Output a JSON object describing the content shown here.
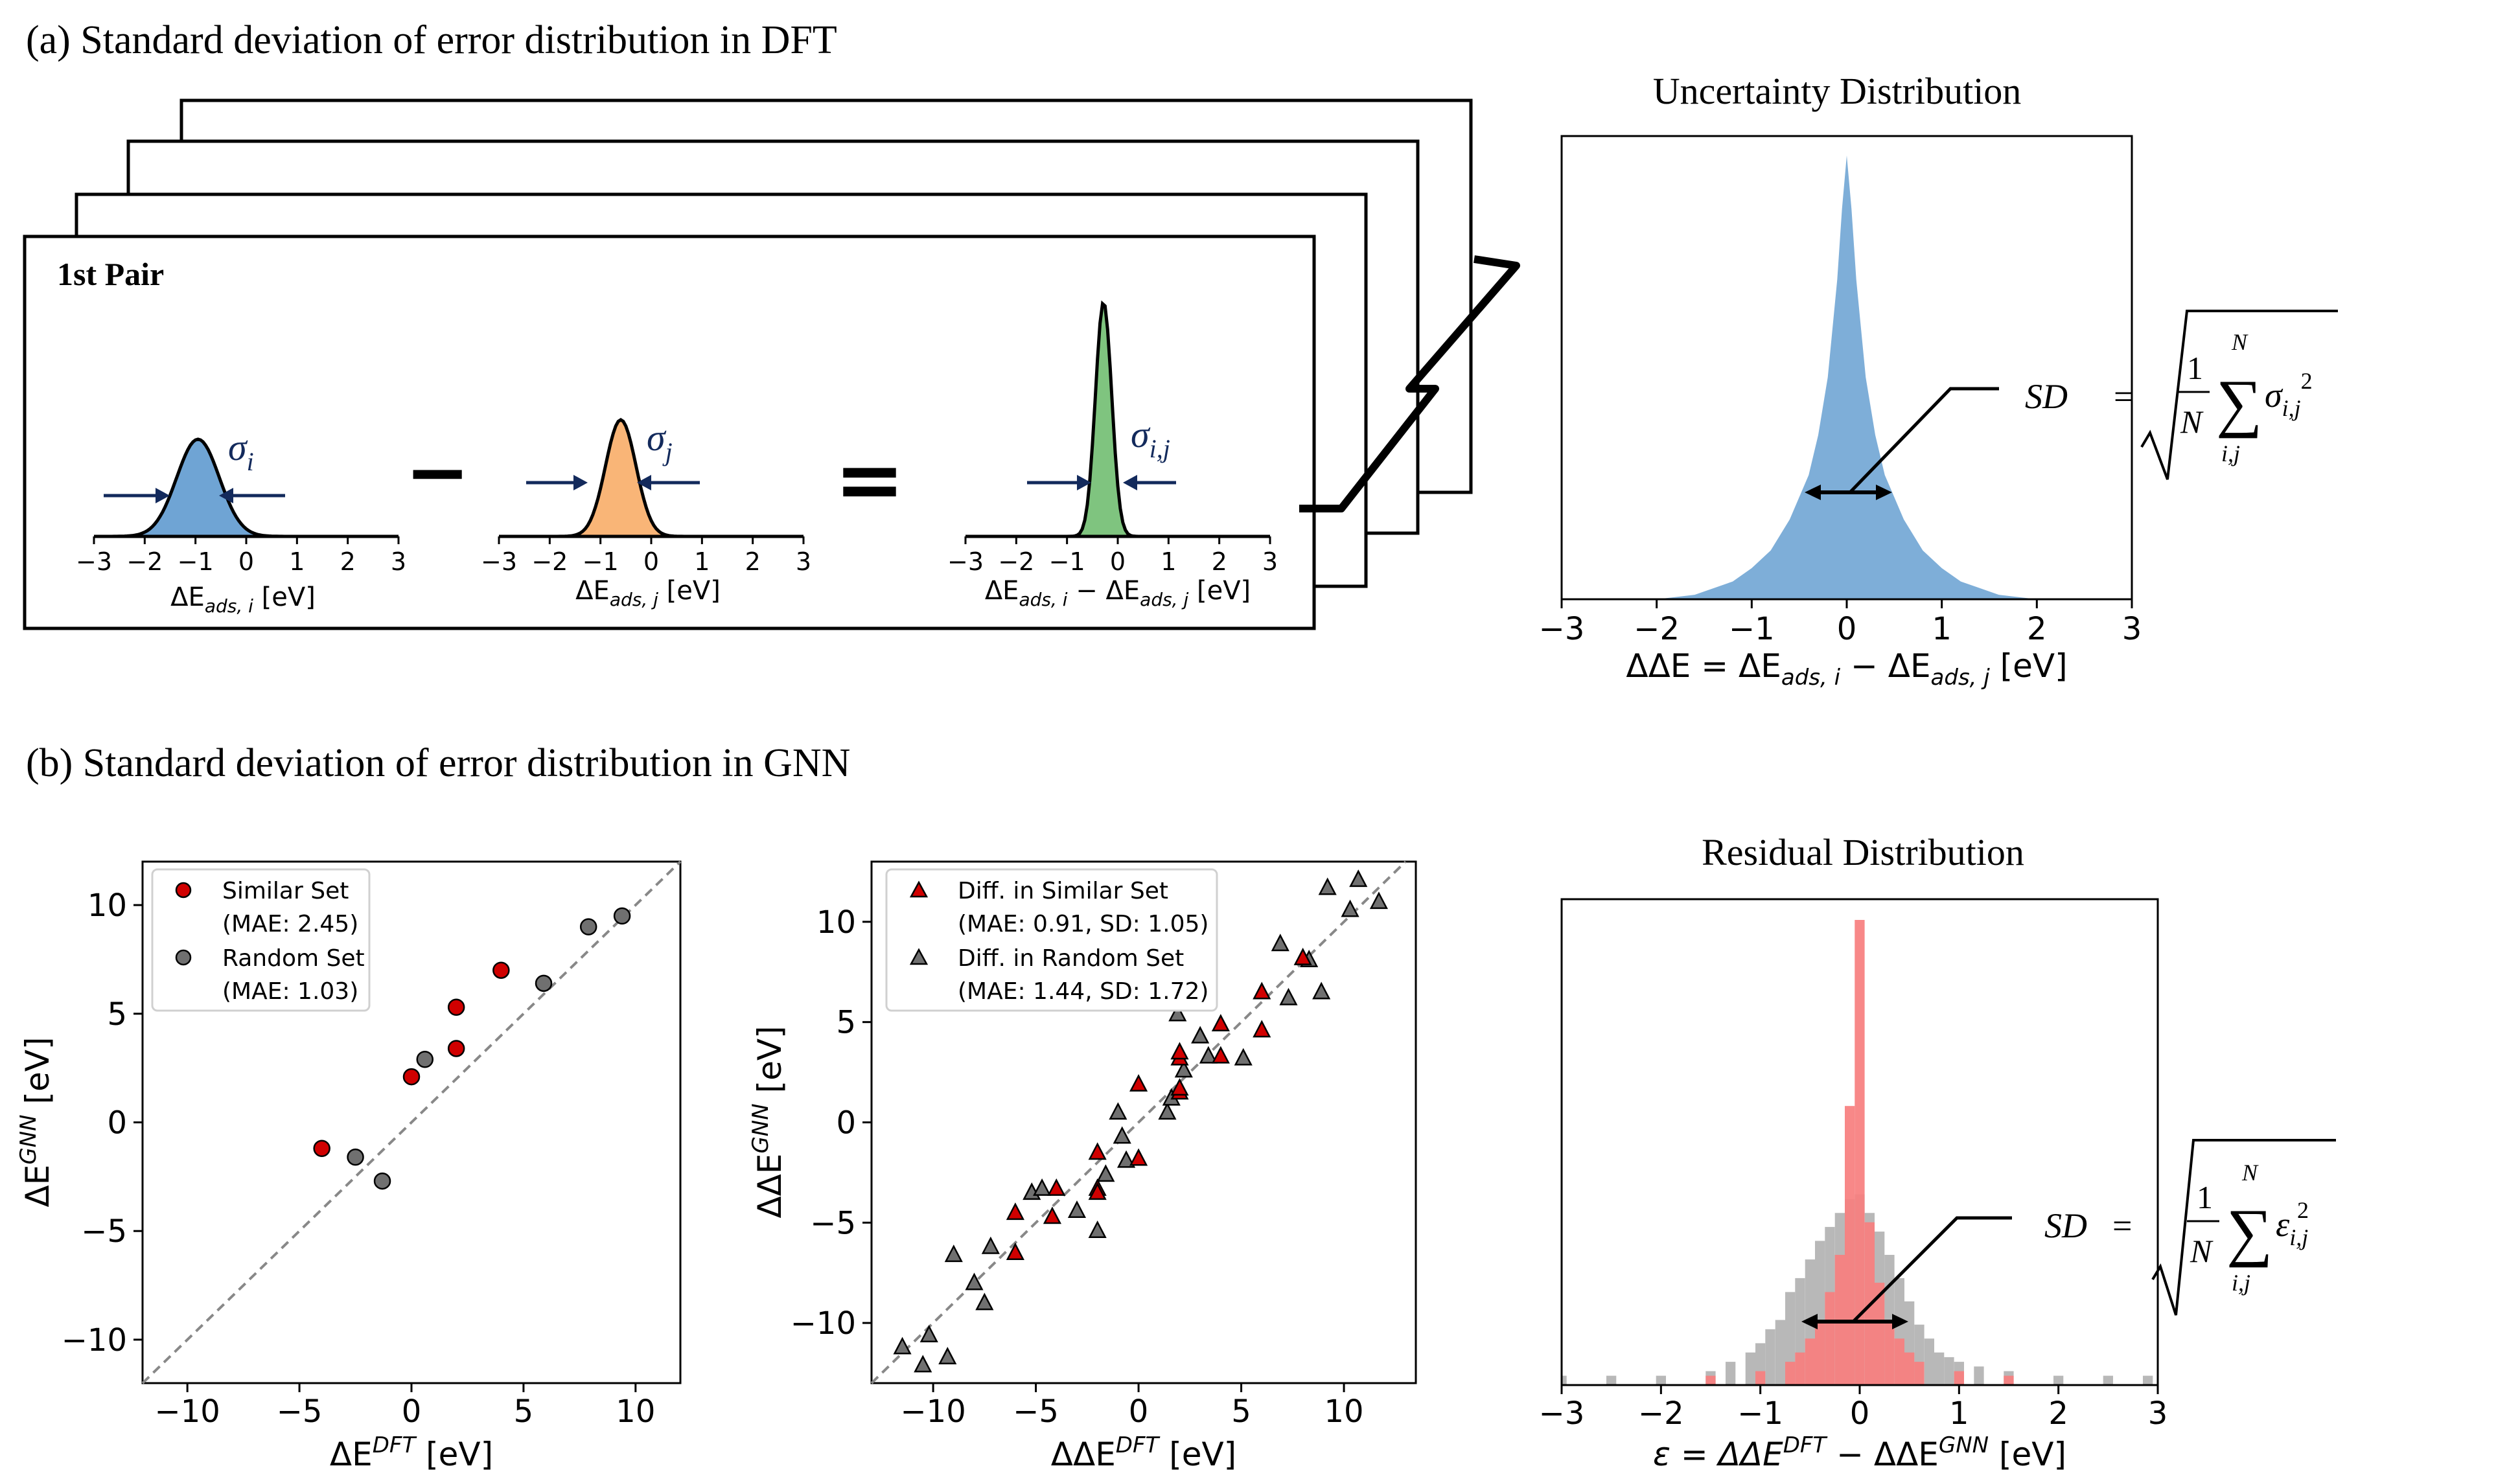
{
  "panel_a": {
    "title": "(a) Standard deviation of error distribution in DFT",
    "pair_label": "1st Pair",
    "operators": {
      "minus": "−",
      "equals": "="
    },
    "dist_i": {
      "sigma_base": "σ",
      "sigma_sub": "i",
      "xlabel_main": "ΔE",
      "xlabel_sub": "ads, i",
      "xlabel_unit": " [eV]",
      "color": "#6fa4d4"
    },
    "dist_j": {
      "sigma_base": "σ",
      "sigma_sub": "j",
      "xlabel_main": "ΔE",
      "xlabel_sub": "ads, j",
      "xlabel_unit": " [eV]",
      "color": "#f9b577"
    },
    "dist_ij": {
      "sigma_base": "σ",
      "sigma_sub": "i,j",
      "xlabel_main1": "ΔE",
      "xlabel_sub1": "ads, i",
      "xlabel_mid": " − ΔE",
      "xlabel_sub2": "ads, j",
      "xlabel_unit": " [eV]",
      "color": "#7fc47f"
    },
    "mini_ticks": [
      "−3",
      "−2",
      "−1",
      "0",
      "1",
      "2",
      "3"
    ],
    "uncertainty_hist": {
      "title": "Uncertainty Distribution",
      "xlabel_a": "ΔΔE = ΔE",
      "xlabel_sub1": "ads, i",
      "xlabel_b": " − ΔE",
      "xlabel_sub2": "ads, j",
      "xlabel_unit": " [eV]",
      "xticks": [
        "−3",
        "−2",
        "−1",
        "0",
        "1",
        "2",
        "3"
      ],
      "color": "#7eaed8"
    },
    "formula": {
      "sd": "SD",
      "eq": "=",
      "one": "1",
      "n_den": "N",
      "n_top": "N",
      "sum": "∑",
      "sum_sub": "i,j",
      "sigma": "σ",
      "sigma_sub": "i,j",
      "sq": "2"
    }
  },
  "panel_b": {
    "title": "(b) Standard deviation of error distribution in GNN",
    "residual_hist": {
      "title": "Residual Distribution",
      "xlabel_a": "ε = ΔΔE",
      "xlabel_sup1": "DFT",
      "xlabel_b": " − ΔΔE",
      "xlabel_sup2": "GNN",
      "xlabel_unit": " [eV]",
      "xticks": [
        "−3",
        "−2",
        "−1",
        "0",
        "1",
        "2",
        "3"
      ],
      "colors": {
        "similar": "#f77e7e",
        "random": "#b8b8b8"
      }
    },
    "formula": {
      "sd": "SD",
      "eq": "=",
      "one": "1",
      "n_den": "N",
      "n_top": "N",
      "sum": "∑",
      "sum_sub": "i,j",
      "eps": "ε",
      "eps_sub": "i,j",
      "sq": "2"
    }
  },
  "chart_data": [
    {
      "id": "scatter1",
      "type": "scatter",
      "xlabel_main": "ΔE",
      "xlabel_sup": "DFT",
      "xlabel_unit": " [eV]",
      "ylabel_main": "ΔE",
      "ylabel_sup": "GNN",
      "ylabel_unit": " [eV]",
      "xlim": [
        -12,
        12
      ],
      "ylim": [
        -12,
        12
      ],
      "xticks": [
        -10,
        -5,
        0,
        5,
        10
      ],
      "yticks": [
        -10,
        -5,
        0,
        5,
        10
      ],
      "xtick_labels": [
        "−10",
        "−5",
        "0",
        "5",
        "10"
      ],
      "ytick_labels": [
        "−10",
        "−5",
        "0",
        "5",
        "10"
      ],
      "diagonal": true,
      "series": [
        {
          "name": "Similar Set",
          "stat": "(MAE: 2.45)",
          "marker": "circle",
          "color": "#d00000",
          "x": [
            -4.0,
            0.0,
            2.0,
            2.0,
            4.0
          ],
          "y": [
            -1.2,
            2.1,
            3.4,
            5.3,
            7.0
          ]
        },
        {
          "name": "Random Set",
          "stat": "(MAE: 1.03)",
          "marker": "circle",
          "color": "#707070",
          "x": [
            -2.5,
            -1.3,
            0.6,
            5.9,
            7.9,
            9.4
          ],
          "y": [
            -1.6,
            -2.7,
            2.9,
            6.4,
            9.0,
            9.5
          ]
        }
      ]
    },
    {
      "id": "scatter2",
      "type": "scatter",
      "xlabel_main": "ΔΔE",
      "xlabel_sup": "DFT",
      "xlabel_unit": " [eV]",
      "ylabel_main": "ΔΔE",
      "ylabel_sup": "GNN",
      "ylabel_unit": " [eV]",
      "xlim": [
        -13,
        13.5
      ],
      "ylim": [
        -13,
        13
      ],
      "xticks": [
        -10,
        -5,
        0,
        5,
        10
      ],
      "yticks": [
        -10,
        -5,
        0,
        5,
        10
      ],
      "xtick_labels": [
        "−10",
        "−5",
        "0",
        "5",
        "10"
      ],
      "ytick_labels": [
        "−10",
        "−5",
        "0",
        "5",
        "10"
      ],
      "diagonal": true,
      "series": [
        {
          "name": "Diff. in Similar Set",
          "stat": "(MAE: 0.91, SD: 1.05)",
          "marker": "triangle",
          "color": "#d00000",
          "x": [
            -6.0,
            -6.0,
            -4.0,
            -4.2,
            -2.0,
            -2.0,
            -2.0,
            0.0,
            0.0,
            2.0,
            2.0,
            2.0,
            2.0,
            4.0,
            4.0,
            6.0,
            6.0,
            8.0
          ],
          "y": [
            -4.5,
            -6.5,
            -3.3,
            -4.7,
            -3.3,
            -3.5,
            -1.5,
            -1.8,
            1.9,
            3.2,
            3.5,
            1.5,
            1.7,
            3.3,
            4.9,
            4.6,
            6.5,
            8.2
          ]
        },
        {
          "name": "Diff. in Random Set",
          "stat": "(MAE: 1.44, SD: 1.72)",
          "marker": "triangle",
          "color": "#707070",
          "x": [
            -11.5,
            -10.5,
            -10.2,
            -9.3,
            -9.0,
            -8.0,
            -7.5,
            -7.2,
            -5.2,
            -4.7,
            -3.0,
            -2.0,
            -1.6,
            -1.0,
            -0.8,
            -0.6,
            1.4,
            1.6,
            1.9,
            2.2,
            3.0,
            3.4,
            5.1,
            6.9,
            7.3,
            8.3,
            8.9,
            9.2,
            10.3,
            10.7,
            11.7
          ],
          "y": [
            -11.2,
            -12.1,
            -10.6,
            -11.7,
            -6.6,
            -8.0,
            -9.0,
            -6.2,
            -3.5,
            -3.3,
            -4.4,
            -5.4,
            -2.6,
            0.5,
            -0.7,
            -1.9,
            0.5,
            1.2,
            5.4,
            2.6,
            4.3,
            3.3,
            3.2,
            8.9,
            6.2,
            8.1,
            6.5,
            11.7,
            10.6,
            12.1,
            11.0
          ]
        }
      ]
    },
    {
      "id": "uncertainty",
      "type": "area",
      "title": "Uncertainty Distribution",
      "xlim": [
        -3,
        3
      ],
      "x": [
        -3.0,
        -2.0,
        -1.6,
        -1.2,
        -1.0,
        -0.8,
        -0.6,
        -0.4,
        -0.3,
        -0.2,
        -0.1,
        -0.05,
        0.0,
        0.05,
        0.1,
        0.2,
        0.3,
        0.4,
        0.6,
        0.8,
        1.0,
        1.2,
        1.6,
        2.0,
        3.0
      ],
      "density": [
        0.0,
        0.0,
        0.01,
        0.04,
        0.07,
        0.11,
        0.18,
        0.28,
        0.37,
        0.5,
        0.72,
        0.88,
        1.0,
        0.88,
        0.72,
        0.5,
        0.37,
        0.28,
        0.18,
        0.11,
        0.07,
        0.04,
        0.01,
        0.0,
        0.0
      ]
    },
    {
      "id": "residual",
      "type": "bar",
      "title": "Residual Distribution",
      "xlim": [
        -3,
        3
      ],
      "bin_width": 0.1,
      "series": [
        {
          "name": "Random Set",
          "color": "#b8b8b8",
          "bins": [
            [
              -3.0,
              0.02
            ],
            [
              -2.5,
              0.02
            ],
            [
              -2.0,
              0.02
            ],
            [
              -1.5,
              0.03
            ],
            [
              -1.3,
              0.05
            ],
            [
              -1.1,
              0.07
            ],
            [
              -1.0,
              0.09
            ],
            [
              -0.9,
              0.12
            ],
            [
              -0.8,
              0.14
            ],
            [
              -0.7,
              0.2
            ],
            [
              -0.6,
              0.23
            ],
            [
              -0.5,
              0.27
            ],
            [
              -0.4,
              0.31
            ],
            [
              -0.3,
              0.34
            ],
            [
              -0.2,
              0.37
            ],
            [
              -0.1,
              0.4
            ],
            [
              0.0,
              0.41
            ],
            [
              0.1,
              0.37
            ],
            [
              0.2,
              0.33
            ],
            [
              0.3,
              0.28
            ],
            [
              0.4,
              0.23
            ],
            [
              0.5,
              0.18
            ],
            [
              0.6,
              0.13
            ],
            [
              0.7,
              0.1
            ],
            [
              0.8,
              0.07
            ],
            [
              0.9,
              0.06
            ],
            [
              1.0,
              0.05
            ],
            [
              1.2,
              0.04
            ],
            [
              1.5,
              0.03
            ],
            [
              2.0,
              0.02
            ],
            [
              2.5,
              0.02
            ],
            [
              2.9,
              0.02
            ]
          ]
        },
        {
          "name": "Similar Set",
          "color": "#f77e7e",
          "bins": [
            [
              -0.5,
              0.1
            ],
            [
              -0.4,
              0.14
            ],
            [
              -0.3,
              0.2
            ],
            [
              -0.2,
              0.28
            ],
            [
              -0.1,
              0.6
            ],
            [
              0.0,
              1.0
            ],
            [
              0.1,
              0.35
            ],
            [
              0.2,
              0.22
            ],
            [
              0.3,
              0.14
            ],
            [
              0.4,
              0.1
            ],
            [
              0.5,
              0.07
            ],
            [
              0.6,
              0.05
            ],
            [
              -0.6,
              0.07
            ],
            [
              -0.7,
              0.05
            ],
            [
              -1.0,
              0.03
            ],
            [
              1.0,
              0.03
            ],
            [
              1.5,
              0.02
            ],
            [
              -1.5,
              0.02
            ]
          ]
        }
      ]
    }
  ]
}
